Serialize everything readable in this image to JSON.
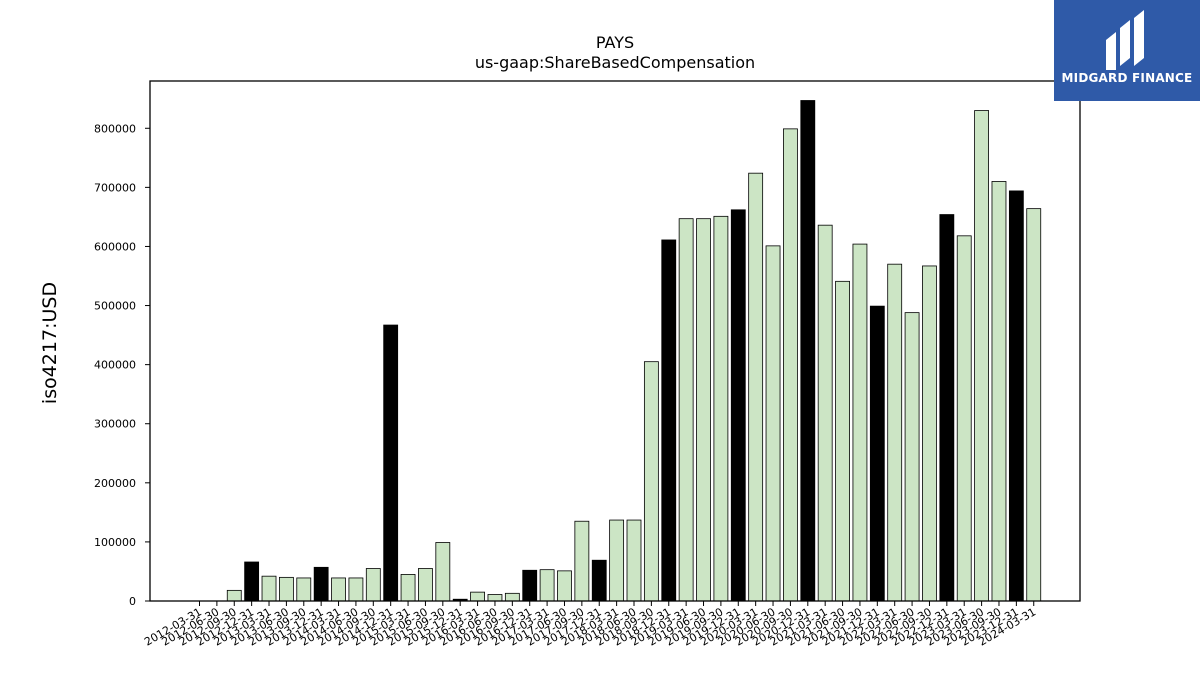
{
  "chart_data": {
    "type": "bar",
    "title": "PAYS",
    "subtitle": "us-gaap:ShareBasedCompensation",
    "ylabel": "iso4217:USD",
    "ylim": [
      0,
      880000
    ],
    "yticks": [
      0,
      100000,
      200000,
      300000,
      400000,
      500000,
      600000,
      700000,
      800000
    ],
    "colors": {
      "quarter": "#cce5c5",
      "annual": "#000000",
      "edge": "#000000"
    },
    "categories": [
      "2012-03-31",
      "2012-06-30",
      "2012-09-30",
      "2012-12-31",
      "2013-03-31",
      "2013-06-30",
      "2013-09-30",
      "2013-12-31",
      "2014-03-31",
      "2014-06-30",
      "2014-09-30",
      "2014-12-31",
      "2015-03-31",
      "2015-06-30",
      "2015-09-30",
      "2015-12-31",
      "2016-03-31",
      "2016-06-30",
      "2016-09-30",
      "2016-12-31",
      "2017-03-31",
      "2017-06-30",
      "2017-09-30",
      "2017-12-31",
      "2018-03-31",
      "2018-06-30",
      "2018-09-30",
      "2018-12-31",
      "2019-03-31",
      "2019-06-30",
      "2019-09-30",
      "2019-12-31",
      "2020-03-31",
      "2020-06-30",
      "2020-09-30",
      "2020-12-31",
      "2021-03-31",
      "2021-06-30",
      "2021-09-30",
      "2021-12-31",
      "2022-03-31",
      "2022-06-30",
      "2022-09-30",
      "2022-12-31",
      "2023-03-31",
      "2023-06-30",
      "2023-09-30",
      "2023-12-31",
      "2024-03-31"
    ],
    "values": [
      0,
      0,
      18000,
      66000,
      42000,
      40000,
      39000,
      57000,
      39000,
      39000,
      55000,
      467000,
      45000,
      55000,
      99000,
      3000,
      15000,
      11000,
      13000,
      52000,
      53000,
      51000,
      135000,
      69000,
      137000,
      137000,
      405000,
      611000,
      647000,
      647000,
      651000,
      662000,
      724000,
      601000,
      799000,
      847000,
      636000,
      541000,
      604000,
      499000,
      570000,
      488000,
      567000,
      654000,
      618000,
      830000,
      710000,
      694000,
      664000
    ],
    "annual": [
      false,
      false,
      false,
      true,
      false,
      false,
      false,
      true,
      false,
      false,
      false,
      true,
      false,
      false,
      false,
      true,
      false,
      false,
      false,
      true,
      false,
      false,
      false,
      true,
      false,
      false,
      false,
      true,
      false,
      false,
      false,
      true,
      false,
      false,
      false,
      true,
      false,
      false,
      false,
      true,
      false,
      false,
      false,
      true,
      false,
      false,
      false,
      true,
      false
    ]
  },
  "logo": {
    "text": "MIDGARD FINANCE",
    "bg": "#2f5aa8"
  }
}
